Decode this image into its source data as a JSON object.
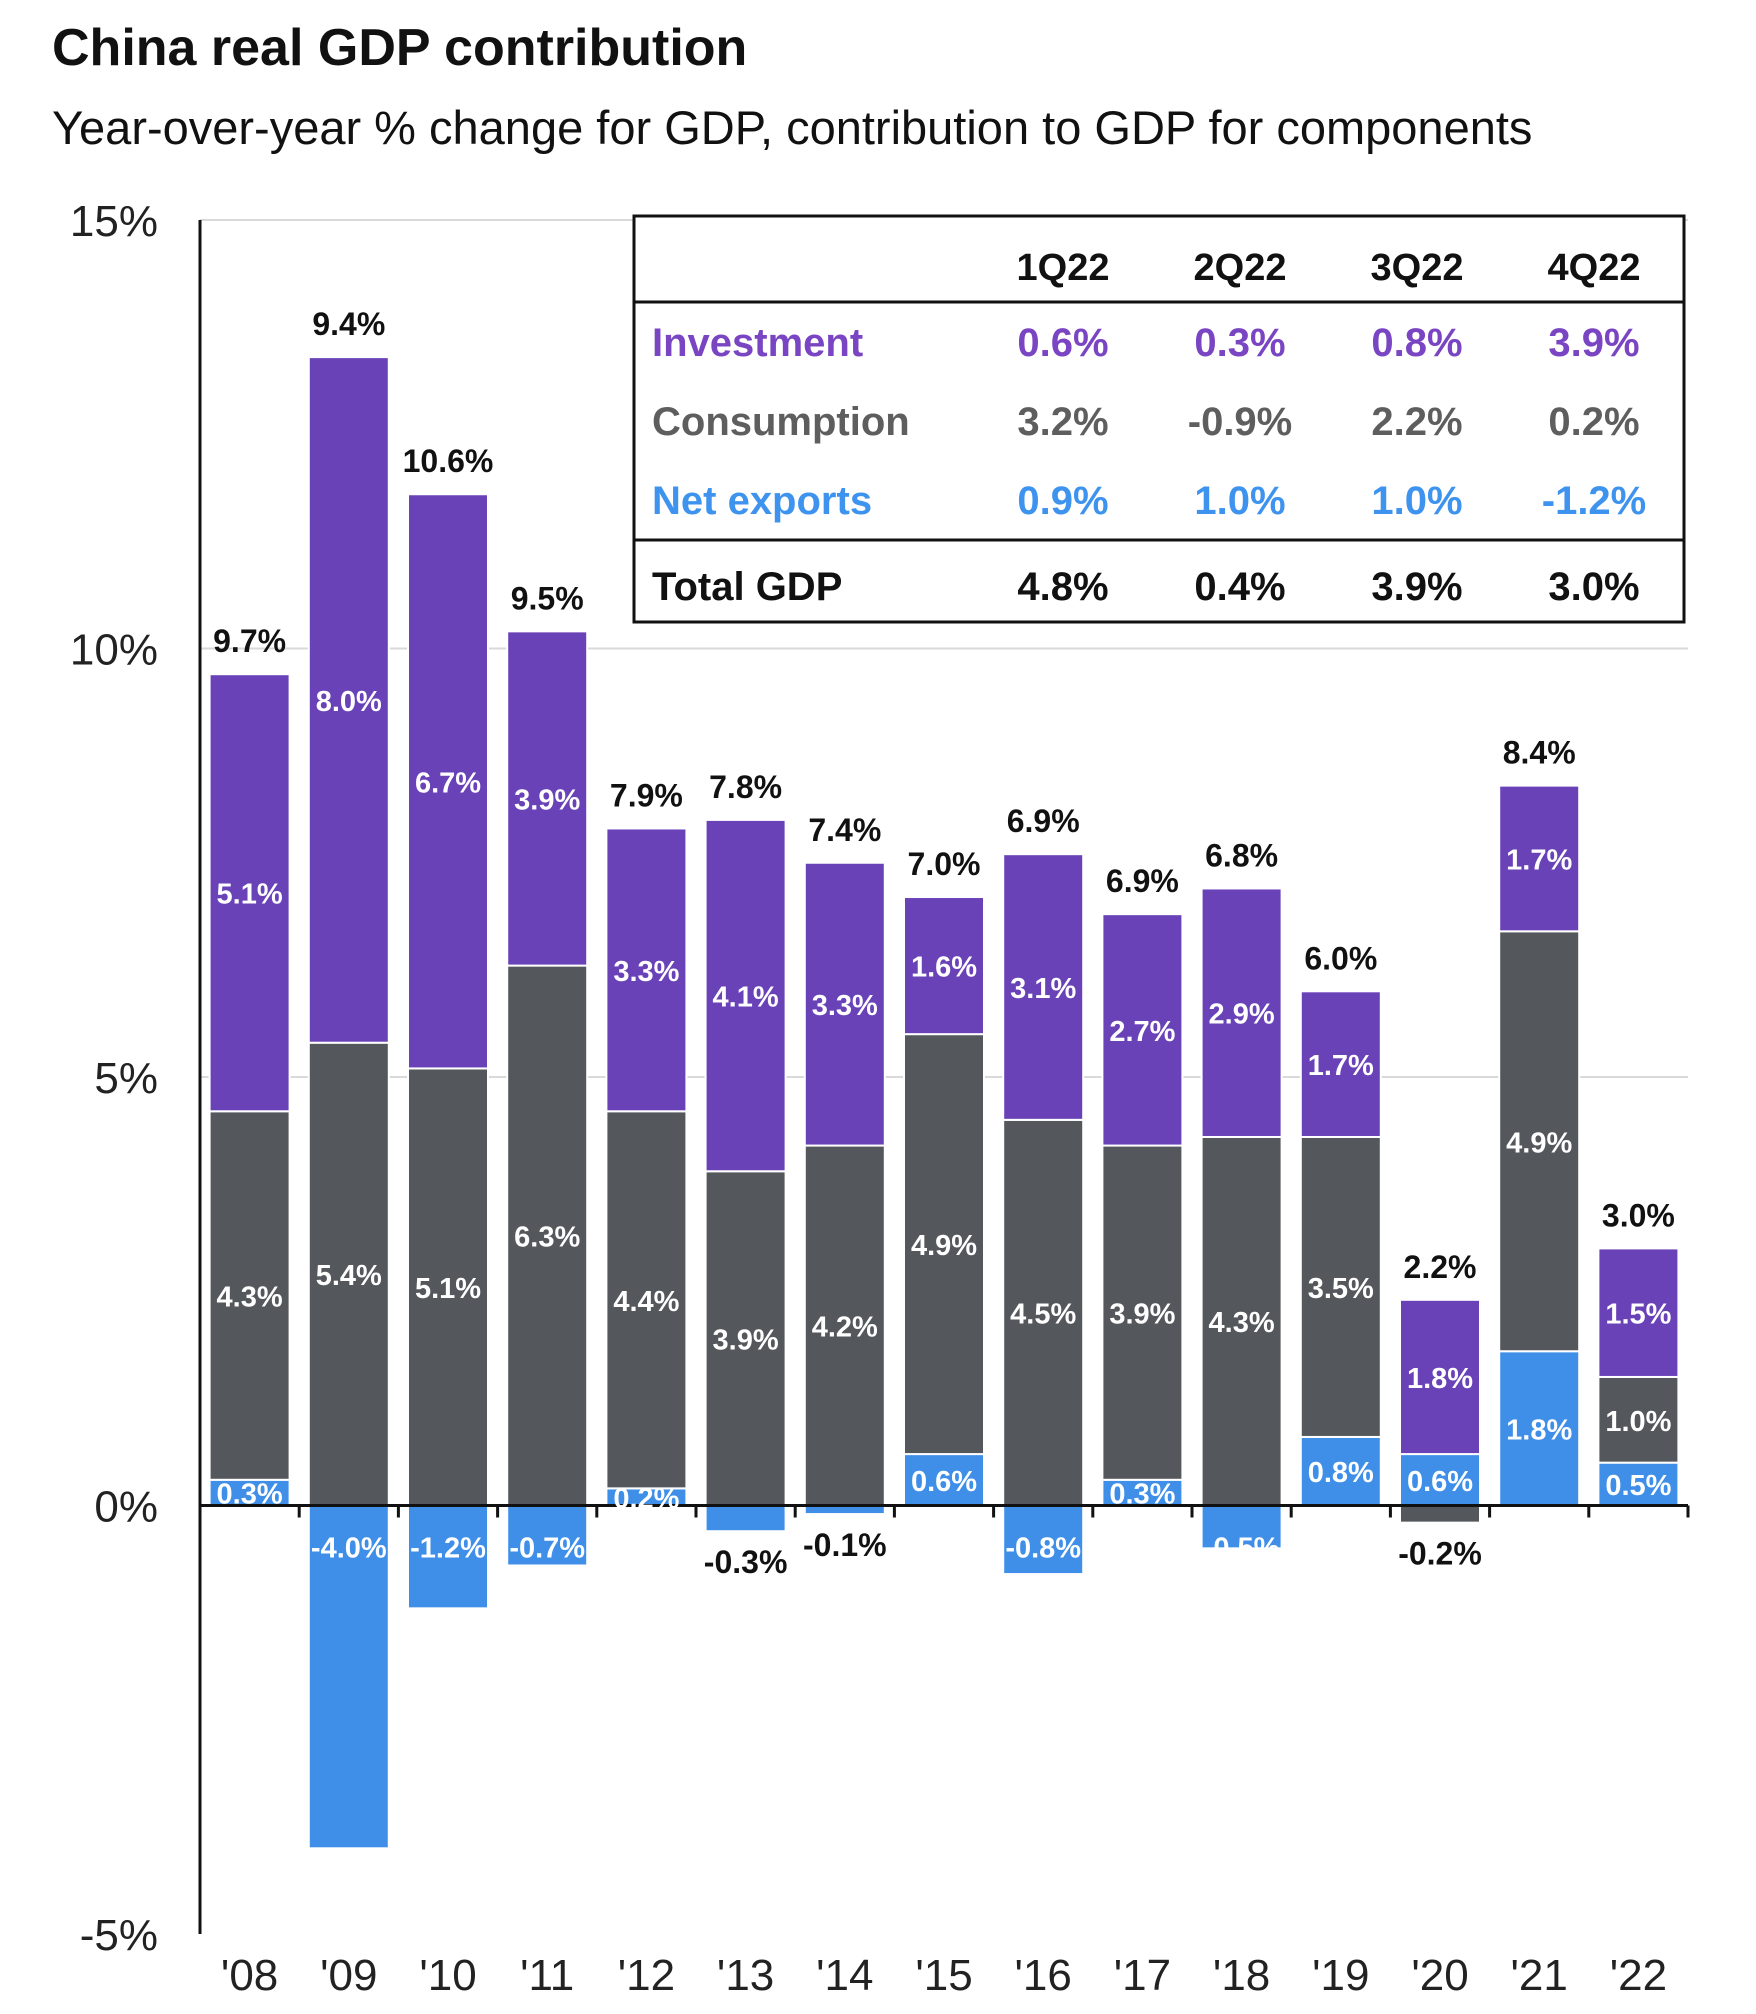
{
  "title": "China real GDP contribution",
  "subtitle": "Year-over-year % change for GDP, contribution to GDP for components",
  "colors": {
    "investment": "#6a42b8",
    "consumption": "#54575b",
    "net_exports": "#3f8fe8",
    "investment_text": "#7a45c2",
    "consumption_text": "#5e5e5e",
    "net_exports_text": "#3e93ef"
  },
  "chart_data": {
    "type": "bar",
    "stacked": true,
    "categories": [
      "'08",
      "'09",
      "'10",
      "'11",
      "'12",
      "'13",
      "'14",
      "'15",
      "'16",
      "'17",
      "'18",
      "'19",
      "'20",
      "'21",
      "'22"
    ],
    "series": [
      {
        "name": "Net exports",
        "values": [
          0.3,
          -4.0,
          -1.2,
          -0.7,
          0.2,
          -0.3,
          -0.1,
          0.6,
          -0.8,
          0.3,
          -0.5,
          0.8,
          0.6,
          1.8,
          0.5
        ],
        "labels": [
          "0.3%",
          "-4.0%",
          "-1.2%",
          "-0.7%",
          "0.2%",
          "-0.3%",
          "-0.1%",
          "0.6%",
          "-0.8%",
          "0.3%",
          "-0.5%",
          "0.8%",
          "0.6%",
          "1.8%",
          "0.5%"
        ]
      },
      {
        "name": "Consumption",
        "values": [
          4.3,
          5.4,
          5.1,
          6.3,
          4.4,
          3.9,
          4.2,
          4.9,
          4.5,
          3.9,
          4.3,
          3.5,
          -0.2,
          4.9,
          1.0
        ],
        "labels": [
          "4.3%",
          "5.4%",
          "5.1%",
          "6.3%",
          "4.4%",
          "3.9%",
          "4.2%",
          "4.9%",
          "4.5%",
          "3.9%",
          "4.3%",
          "3.5%",
          "-0.2%",
          "4.9%",
          "1.0%"
        ]
      },
      {
        "name": "Investment",
        "values": [
          5.1,
          8.0,
          6.7,
          3.9,
          3.3,
          4.1,
          3.3,
          1.6,
          3.1,
          2.7,
          2.9,
          1.7,
          1.8,
          1.7,
          1.5
        ],
        "labels": [
          "5.1%",
          "8.0%",
          "6.7%",
          "3.9%",
          "3.3%",
          "4.1%",
          "3.3%",
          "1.6%",
          "3.1%",
          "2.7%",
          "2.9%",
          "1.7%",
          "1.8%",
          "1.7%",
          "1.5%"
        ]
      }
    ],
    "totals": [
      9.7,
      9.4,
      10.6,
      9.5,
      7.9,
      7.8,
      7.4,
      7.0,
      6.9,
      6.9,
      6.8,
      6.0,
      2.2,
      8.4,
      3.0
    ],
    "total_labels": [
      "9.7%",
      "9.4%",
      "10.6%",
      "9.5%",
      "7.9%",
      "7.8%",
      "7.4%",
      "7.0%",
      "6.9%",
      "6.9%",
      "6.8%",
      "6.0%",
      "2.2%",
      "8.4%",
      "3.0%"
    ],
    "ylim": [
      -5,
      15
    ],
    "yticks": [
      15,
      10,
      5,
      0,
      -5
    ],
    "ytick_labels": [
      "15%",
      "10%",
      "5%",
      "0%",
      "-5%"
    ],
    "grid": true
  },
  "table": {
    "columns": [
      "1Q22",
      "2Q22",
      "3Q22",
      "4Q22"
    ],
    "rows": [
      {
        "label": "Investment",
        "values": [
          "0.6%",
          "0.3%",
          "0.8%",
          "3.9%"
        ]
      },
      {
        "label": "Consumption",
        "values": [
          "3.2%",
          "-0.9%",
          "2.2%",
          "0.2%"
        ]
      },
      {
        "label": "Net exports",
        "values": [
          "0.9%",
          "1.0%",
          "1.0%",
          "-1.2%"
        ]
      }
    ],
    "total": {
      "label": "Total GDP",
      "values": [
        "4.8%",
        "0.4%",
        "3.9%",
        "3.0%"
      ]
    }
  }
}
